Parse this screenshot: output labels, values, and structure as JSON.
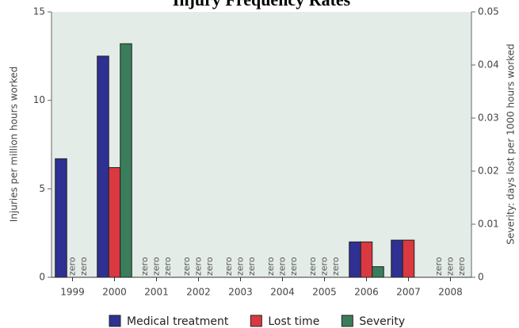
{
  "chart_data": {
    "type": "bar",
    "title": "Injury Frequency Rates",
    "y_label": "Injuries per million hours worked",
    "y2_label": "Severity: days lost per 1000 hours worked",
    "categories": [
      "1999",
      "2000",
      "2001",
      "2002",
      "2003",
      "2004",
      "2005",
      "2006",
      "2007",
      "2008"
    ],
    "series": [
      {
        "name": "Medical treatment",
        "color": "#2e3192",
        "values": [
          6.7,
          12.5,
          0,
          0,
          0,
          0,
          0,
          2.0,
          2.1,
          0
        ],
        "value_labels": [
          null,
          null,
          "zero",
          "zero",
          "zero",
          "zero",
          "zero",
          null,
          null,
          "zero"
        ]
      },
      {
        "name": "Lost time",
        "color": "#d9393f",
        "values": [
          0,
          6.2,
          0,
          0,
          0,
          0,
          0,
          2.0,
          2.1,
          0
        ],
        "value_labels": [
          "zero",
          null,
          "zero",
          "zero",
          "zero",
          "zero",
          "zero",
          null,
          null,
          "zero"
        ]
      },
      {
        "name": "Severity",
        "color": "#3a7d5a",
        "axis": "y2",
        "values": [
          0,
          0.044,
          0,
          0,
          0,
          0,
          0,
          0.002,
          null,
          0
        ],
        "value_labels": [
          "zero",
          null,
          "zero",
          "zero",
          "zero",
          "zero",
          "zero",
          null,
          null,
          "zero"
        ]
      }
    ],
    "ylim": [
      0,
      15
    ],
    "yticks": [
      0,
      5,
      10,
      15
    ],
    "y2lim": [
      0,
      0.05
    ],
    "y2ticks": [
      0,
      0.01,
      0.02,
      0.03,
      0.04,
      0.05
    ],
    "legend": "bottom"
  }
}
